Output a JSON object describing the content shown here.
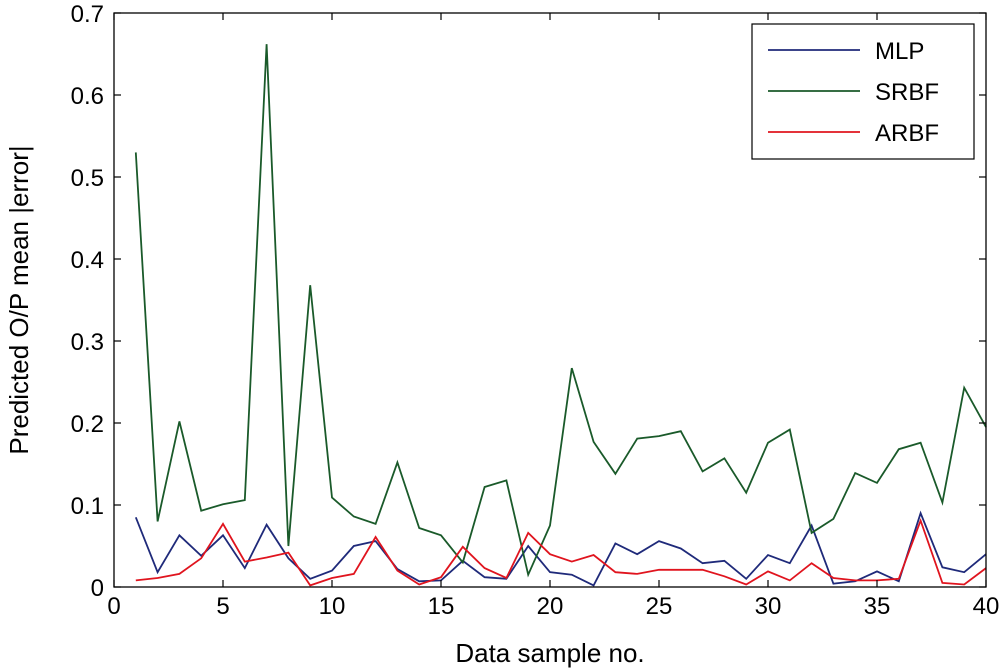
{
  "chart_data": {
    "type": "line",
    "title": "",
    "xlabel": "Data sample no.",
    "ylabel": "Predicted O/P mean |error|",
    "xlim": [
      0,
      40
    ],
    "ylim": [
      0,
      0.7
    ],
    "x_ticks": [
      0,
      5,
      10,
      15,
      20,
      25,
      30,
      35,
      40
    ],
    "y_ticks": [
      0,
      0.1,
      0.2,
      0.3,
      0.4,
      0.5,
      0.6,
      0.7
    ],
    "x_tick_labels": [
      "0",
      "5",
      "10",
      "15",
      "20",
      "25",
      "30",
      "35",
      "40"
    ],
    "y_tick_labels": [
      "0",
      "0.1",
      "0.2",
      "0.3",
      "0.4",
      "0.5",
      "0.6",
      "0.7"
    ],
    "grid": false,
    "legend_position": "top-right",
    "x": [
      1,
      2,
      3,
      4,
      5,
      6,
      7,
      8,
      9,
      10,
      11,
      12,
      13,
      14,
      15,
      16,
      17,
      18,
      19,
      20,
      21,
      22,
      23,
      24,
      25,
      26,
      27,
      28,
      29,
      30,
      31,
      32,
      33,
      34,
      35,
      36,
      37,
      38,
      39,
      40
    ],
    "series": [
      {
        "name": "MLP",
        "color": "#1f2a7a",
        "values": [
          0.085,
          0.018,
          0.063,
          0.038,
          0.063,
          0.023,
          0.076,
          0.035,
          0.01,
          0.02,
          0.05,
          0.056,
          0.022,
          0.007,
          0.008,
          0.032,
          0.012,
          0.01,
          0.05,
          0.018,
          0.015,
          0.002,
          0.053,
          0.04,
          0.056,
          0.047,
          0.029,
          0.032,
          0.01,
          0.039,
          0.029,
          0.075,
          0.004,
          0.007,
          0.019,
          0.007,
          0.09,
          0.024,
          0.018,
          0.04
        ]
      },
      {
        "name": "SRBF",
        "color": "#1a5a2a",
        "values": [
          0.53,
          0.08,
          0.202,
          0.093,
          0.101,
          0.106,
          0.662,
          0.05,
          0.368,
          0.109,
          0.086,
          0.077,
          0.152,
          0.072,
          0.063,
          0.03,
          0.122,
          0.13,
          0.015,
          0.075,
          0.267,
          0.177,
          0.138,
          0.181,
          0.184,
          0.19,
          0.141,
          0.157,
          0.115,
          0.176,
          0.192,
          0.066,
          0.083,
          0.139,
          0.127,
          0.168,
          0.176,
          0.103,
          0.243,
          0.195
        ]
      },
      {
        "name": "ARBF",
        "color": "#e0141e",
        "values": [
          0.008,
          0.011,
          0.016,
          0.035,
          0.077,
          0.031,
          0.036,
          0.042,
          0.002,
          0.011,
          0.016,
          0.061,
          0.02,
          0.003,
          0.012,
          0.049,
          0.023,
          0.011,
          0.066,
          0.04,
          0.031,
          0.039,
          0.018,
          0.016,
          0.021,
          0.021,
          0.021,
          0.013,
          0.003,
          0.019,
          0.008,
          0.029,
          0.011,
          0.008,
          0.008,
          0.01,
          0.081,
          0.005,
          0.003,
          0.023
        ]
      }
    ]
  }
}
